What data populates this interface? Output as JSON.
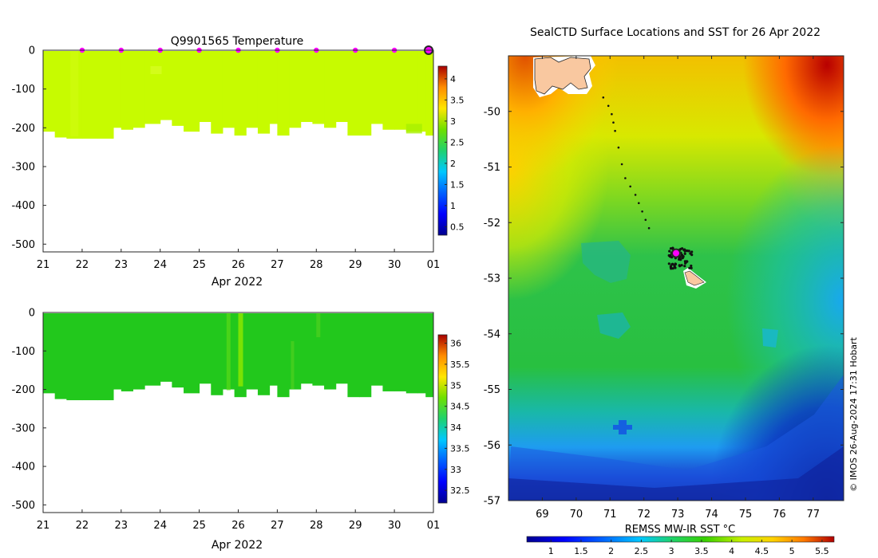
{
  "colors": {
    "temp_fill": "#c7fb00",
    "sal_fill": "#22c81c",
    "sal_band": "#8ae600",
    "marker": "#ff00ff",
    "axis": "#262626",
    "grid_tick": "#262626"
  },
  "chart_data": [
    {
      "id": "temperature",
      "type": "heatmap",
      "title": "Q9901565  Temperature",
      "xlabel": "Apr 2022",
      "x_ticks": [
        "21",
        "22",
        "23",
        "24",
        "25",
        "26",
        "27",
        "28",
        "29",
        "30",
        "01"
      ],
      "xlim": [
        21,
        31
      ],
      "ylim": [
        -520,
        0
      ],
      "y_ticks": [
        0,
        -100,
        -200,
        -300,
        -400,
        -500
      ],
      "colorbar": {
        "min": 0.3,
        "max": 4.3,
        "ticks": [
          0.5,
          1,
          1.5,
          2,
          2.5,
          3,
          3.5,
          4
        ]
      },
      "dominant_value": 2.9,
      "profile_bottom_depth": [
        [
          21.0,
          -210
        ],
        [
          21.3,
          -225
        ],
        [
          21.6,
          -228
        ],
        [
          22.0,
          -228
        ],
        [
          22.4,
          -228
        ],
        [
          22.8,
          -200
        ],
        [
          23.0,
          -205
        ],
        [
          23.3,
          -200
        ],
        [
          23.6,
          -190
        ],
        [
          24.0,
          -180
        ],
        [
          24.3,
          -195
        ],
        [
          24.6,
          -210
        ],
        [
          25.0,
          -185
        ],
        [
          25.3,
          -215
        ],
        [
          25.6,
          -200
        ],
        [
          25.9,
          -220
        ],
        [
          26.2,
          -200
        ],
        [
          26.5,
          -215
        ],
        [
          26.8,
          -190
        ],
        [
          27.0,
          -220
        ],
        [
          27.3,
          -200
        ],
        [
          27.6,
          -185
        ],
        [
          27.9,
          -190
        ],
        [
          28.2,
          -200
        ],
        [
          28.5,
          -185
        ],
        [
          28.8,
          -220
        ],
        [
          29.1,
          -220
        ],
        [
          29.4,
          -190
        ],
        [
          29.7,
          -205
        ],
        [
          30.0,
          -205
        ],
        [
          30.3,
          -210
        ],
        [
          30.6,
          -210
        ],
        [
          30.8,
          -220
        ],
        [
          31.0,
          -210
        ]
      ],
      "surface_markers": [
        22,
        23,
        24,
        25,
        26,
        27,
        28,
        29,
        30
      ],
      "latest_marker": 31
    },
    {
      "id": "salinity",
      "type": "heatmap",
      "title": "",
      "xlabel": "Apr 2022",
      "x_ticks": [
        "21",
        "22",
        "23",
        "24",
        "25",
        "26",
        "27",
        "28",
        "29",
        "30",
        "01"
      ],
      "xlim": [
        21,
        31
      ],
      "ylim": [
        -520,
        0
      ],
      "y_ticks": [
        0,
        -100,
        -200,
        -300,
        -400,
        -500
      ],
      "colorbar": {
        "min": 32.2,
        "max": 36.2,
        "ticks": [
          32.5,
          33,
          33.5,
          34,
          34.5,
          35,
          35.5,
          36
        ]
      },
      "dominant_value": 34.1,
      "profile_bottom_depth": [
        [
          21.0,
          -210
        ],
        [
          21.3,
          -225
        ],
        [
          21.6,
          -228
        ],
        [
          22.0,
          -228
        ],
        [
          22.4,
          -228
        ],
        [
          22.8,
          -200
        ],
        [
          23.0,
          -205
        ],
        [
          23.3,
          -200
        ],
        [
          23.6,
          -190
        ],
        [
          24.0,
          -180
        ],
        [
          24.3,
          -195
        ],
        [
          24.6,
          -210
        ],
        [
          25.0,
          -185
        ],
        [
          25.3,
          -215
        ],
        [
          25.6,
          -200
        ],
        [
          25.9,
          -220
        ],
        [
          26.2,
          -200
        ],
        [
          26.5,
          -215
        ],
        [
          26.8,
          -190
        ],
        [
          27.0,
          -220
        ],
        [
          27.3,
          -200
        ],
        [
          27.6,
          -185
        ],
        [
          27.9,
          -190
        ],
        [
          28.2,
          -200
        ],
        [
          28.5,
          -185
        ],
        [
          28.8,
          -220
        ],
        [
          29.1,
          -220
        ],
        [
          29.4,
          -190
        ],
        [
          29.7,
          -205
        ],
        [
          30.0,
          -205
        ],
        [
          30.3,
          -210
        ],
        [
          30.6,
          -210
        ],
        [
          30.8,
          -220
        ],
        [
          31.0,
          -210
        ]
      ]
    },
    {
      "id": "sst_map",
      "type": "heatmap",
      "title": "SealCTD Surface Locations and SST for 26 Apr 2022",
      "x_ticks": [
        69,
        70,
        71,
        72,
        73,
        74,
        75,
        76,
        77
      ],
      "y_ticks": [
        -50,
        -51,
        -52,
        -53,
        -54,
        -55,
        -56,
        -57
      ],
      "xlim": [
        68.0,
        77.9
      ],
      "ylim": [
        -57.0,
        -49.0
      ],
      "colorbar": {
        "label": "REMSS MW-IR SST °C",
        "min": 0.6,
        "max": 5.7,
        "ticks": [
          1,
          1.5,
          2,
          2.5,
          3,
          3.5,
          4,
          4.5,
          5,
          5.5
        ]
      },
      "track": [
        [
          70.8,
          -49.75
        ],
        [
          70.95,
          -49.9
        ],
        [
          71.05,
          -50.05
        ],
        [
          71.1,
          -50.2
        ],
        [
          71.15,
          -50.35
        ],
        [
          71.25,
          -50.65
        ],
        [
          71.35,
          -50.95
        ],
        [
          71.45,
          -51.2
        ],
        [
          71.6,
          -51.35
        ],
        [
          71.75,
          -51.5
        ],
        [
          71.85,
          -51.65
        ],
        [
          71.95,
          -51.8
        ],
        [
          72.05,
          -51.95
        ],
        [
          72.15,
          -52.1
        ]
      ],
      "latest_position": [
        72.95,
        -52.55
      ],
      "footnote": "© IMOS 26-Aug-2024 17:31 Hobart"
    }
  ]
}
